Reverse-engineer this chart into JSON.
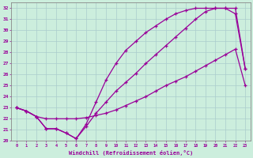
{
  "bg_color": "#cceedd",
  "grid_color": "#aacccc",
  "line_color": "#990099",
  "xlim": [
    -0.5,
    23.5
  ],
  "ylim": [
    20,
    32.5
  ],
  "xticks": [
    0,
    1,
    2,
    3,
    4,
    5,
    6,
    7,
    8,
    9,
    10,
    11,
    12,
    13,
    14,
    15,
    16,
    17,
    18,
    19,
    20,
    21,
    22,
    23
  ],
  "yticks": [
    20,
    21,
    22,
    23,
    24,
    25,
    26,
    27,
    28,
    29,
    30,
    31,
    32
  ],
  "xlabel": "Windchill (Refroidissement éolien,°C)",
  "line1_x": [
    0,
    1,
    2,
    3,
    4,
    5,
    6,
    7,
    8,
    9,
    10,
    11,
    12,
    13,
    14,
    15,
    16,
    17,
    18,
    19,
    20,
    21,
    22,
    23
  ],
  "line1_y": [
    23.0,
    22.7,
    22.2,
    21.1,
    21.1,
    20.7,
    20.2,
    21.3,
    22.5,
    23.5,
    24.5,
    25.3,
    26.1,
    27.0,
    27.8,
    28.6,
    29.4,
    30.2,
    31.0,
    31.7,
    32.0,
    32.0,
    32.0,
    26.5
  ],
  "line2_x": [
    0,
    1,
    2,
    3,
    4,
    5,
    6,
    7,
    8,
    9,
    10,
    11,
    12,
    13,
    14,
    15,
    16,
    17,
    18,
    19,
    20,
    21,
    22,
    23
  ],
  "line2_y": [
    23.0,
    22.7,
    22.2,
    21.1,
    21.1,
    20.7,
    20.2,
    21.5,
    23.5,
    25.5,
    27.0,
    28.2,
    29.0,
    29.8,
    30.4,
    31.0,
    31.5,
    31.8,
    32.0,
    32.0,
    32.0,
    32.0,
    31.5,
    26.5
  ],
  "line3_x": [
    0,
    1,
    2,
    3,
    4,
    5,
    6,
    7,
    8,
    9,
    10,
    11,
    12,
    13,
    14,
    15,
    16,
    17,
    18,
    19,
    20,
    21,
    22,
    23
  ],
  "line3_y": [
    23.0,
    22.7,
    22.2,
    22.0,
    22.0,
    22.0,
    22.0,
    22.1,
    22.3,
    22.5,
    22.8,
    23.2,
    23.6,
    24.0,
    24.5,
    25.0,
    25.4,
    25.8,
    26.3,
    26.8,
    27.3,
    27.8,
    28.3,
    25.0
  ]
}
